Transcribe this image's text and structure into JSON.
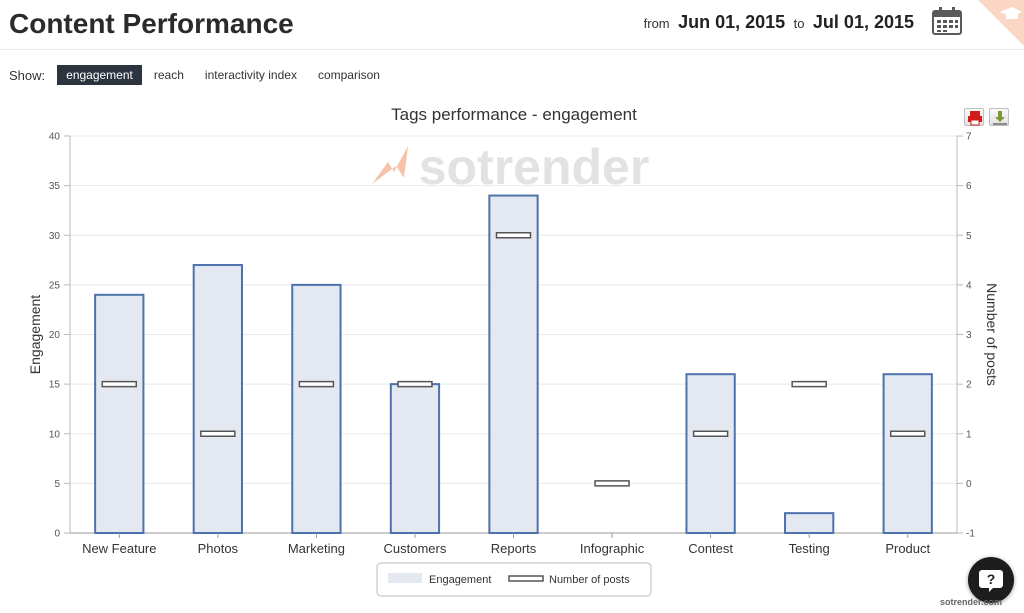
{
  "header": {
    "title": "Content Performance",
    "from_label": "from",
    "from_date": "Jun 01, 2015",
    "to_label": "to",
    "to_date": "Jul 01, 2015"
  },
  "show": {
    "label": "Show:",
    "options": [
      "engagement",
      "reach",
      "interactivity index",
      "comparison"
    ],
    "selected": "engagement"
  },
  "watermark": "sotrender",
  "credit": "sotrender.com",
  "help_label": "?",
  "colors": {
    "bar_fill": "#e3e8f1",
    "bar_stroke": "#4e72ab",
    "marker_fill": "#ffffff",
    "marker_stroke": "#555555",
    "active_tab": "#2c3440",
    "accent": "#f0734a"
  },
  "chart_data": {
    "type": "bar",
    "title": "Tags performance - engagement",
    "categories": [
      "New Feature",
      "Photos",
      "Marketing",
      "Customers",
      "Reports",
      "Infographic",
      "Contest",
      "Testing",
      "Product"
    ],
    "series": [
      {
        "name": "Engagement",
        "type": "bar",
        "axis": "left",
        "values": [
          24,
          27,
          25,
          15,
          34,
          0,
          16,
          2,
          16
        ]
      },
      {
        "name": "Number of posts",
        "type": "marker",
        "axis": "right",
        "values": [
          2,
          1,
          2,
          2,
          5,
          0,
          1,
          2,
          1
        ]
      }
    ],
    "ylabel": "Engagement",
    "ylim": [
      0,
      40
    ],
    "yticks": [
      0,
      5,
      10,
      15,
      20,
      25,
      30,
      35,
      40
    ],
    "y2label": "Number of posts",
    "y2lim": [
      -1,
      7
    ],
    "y2ticks": [
      -1,
      0,
      1,
      2,
      3,
      4,
      5,
      6,
      7
    ],
    "grid": true,
    "legend": "bottom-center"
  }
}
